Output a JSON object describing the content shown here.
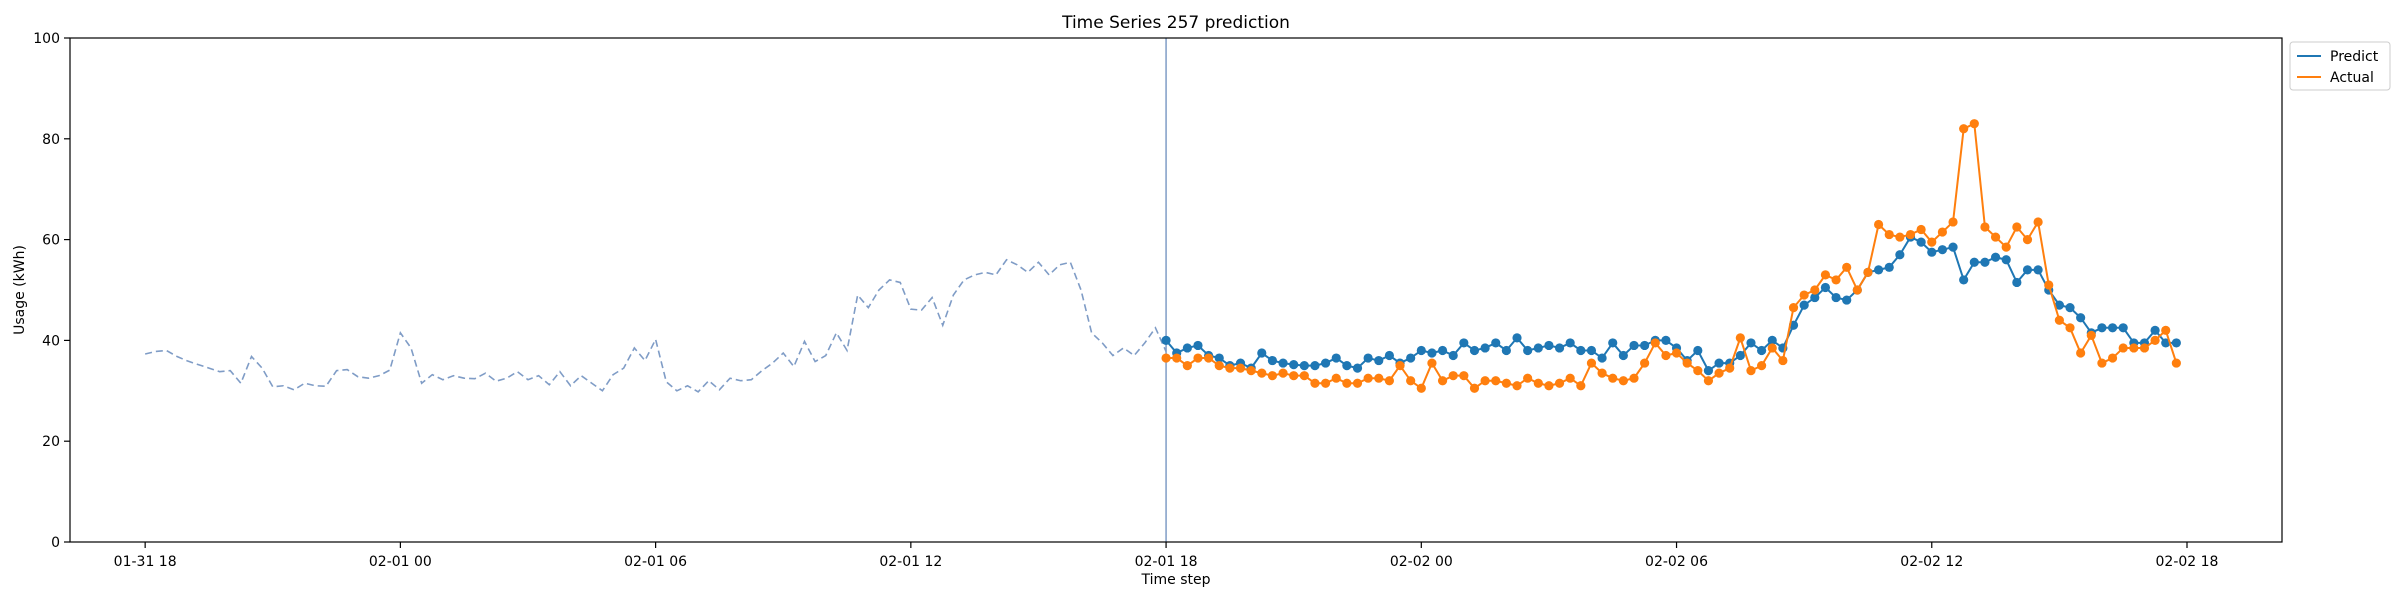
{
  "chart_data": {
    "type": "line",
    "title": "Time Series 257 prediction",
    "xlabel": "Time step",
    "ylabel": "Usage (kWh)",
    "ylim": [
      0,
      100
    ],
    "yticks": [
      0,
      20,
      40,
      60,
      80,
      100
    ],
    "xlim": [
      "2024-01-31T16:14",
      "2024-02-02T20:14"
    ],
    "xticks": [
      {
        "t": "2024-01-31T18:00",
        "label": "01-31 18"
      },
      {
        "t": "2024-02-01T00:00",
        "label": "02-01 00"
      },
      {
        "t": "2024-02-01T06:00",
        "label": "02-01 06"
      },
      {
        "t": "2024-02-01T12:00",
        "label": "02-01 12"
      },
      {
        "t": "2024-02-01T18:00",
        "label": "02-01 18"
      },
      {
        "t": "2024-02-02T00:00",
        "label": "02-02 00"
      },
      {
        "t": "2024-02-02T06:00",
        "label": "02-02 06"
      },
      {
        "t": "2024-02-02T12:00",
        "label": "02-02 12"
      },
      {
        "t": "2024-02-02T18:00",
        "label": "02-02 18"
      }
    ],
    "forecast_start": "2024-02-01T18:00",
    "grid": false,
    "legend": {
      "position": "outside-top-right",
      "entries": [
        "Predict",
        "Actual"
      ]
    },
    "colors": {
      "predict": "#1f77b4",
      "actual": "#ff7f0e",
      "history": "#7f9cc6",
      "divider": "#7f9cc6"
    },
    "series": [
      {
        "key": "history",
        "style": "dashed",
        "start": "2024-01-31T18:00",
        "interval_minutes": 15,
        "values": [
          37.3,
          37.8,
          38.0,
          36.8,
          35.9,
          35.2,
          34.5,
          33.8,
          34.0,
          31.5,
          36.8,
          34.5,
          30.8,
          31.0,
          30.2,
          31.5,
          31.0,
          30.9,
          34.0,
          34.2,
          32.8,
          32.5,
          33.0,
          34.1,
          41.5,
          38.5,
          31.5,
          33.2,
          32.2,
          33.0,
          32.5,
          32.4,
          33.5,
          31.9,
          32.5,
          33.8,
          32.2,
          33.0,
          31.2,
          33.8,
          31.0,
          33.0,
          31.5,
          30.0,
          33.2,
          34.5,
          38.5,
          36.0,
          40.2,
          31.8,
          30.0,
          31.0,
          29.8,
          32.0,
          30.2,
          32.5,
          32.0,
          32.2,
          34.0,
          35.5,
          37.5,
          34.8,
          39.8,
          35.8,
          37.0,
          41.5,
          38.0,
          49.0,
          46.5,
          50.0,
          52.0,
          51.5,
          46.2,
          46.0,
          48.5,
          43.0,
          49.0,
          52.0,
          53.0,
          53.5,
          53.0,
          56.0,
          55.0,
          53.5,
          55.5,
          53.0,
          55.0,
          55.5,
          50.0,
          41.5,
          39.5,
          37.0,
          38.5,
          37.0,
          39.5,
          42.5,
          37.8
        ]
      },
      {
        "key": "predict",
        "name": "Predict",
        "style": "solid-markers",
        "start": "2024-02-01T18:00",
        "interval_minutes": 15,
        "values": [
          40.0,
          37.5,
          38.5,
          39.0,
          37.0,
          36.5,
          35.0,
          35.5,
          34.5,
          37.5,
          36.0,
          35.5,
          35.2,
          35.0,
          35.0,
          35.5,
          36.5,
          35.0,
          34.5,
          36.5,
          36.0,
          37.0,
          35.5,
          36.5,
          38.0,
          37.5,
          38.0,
          37.0,
          39.5,
          38.0,
          38.5,
          39.5,
          38.0,
          40.5,
          38.0,
          38.5,
          39.0,
          38.5,
          39.5,
          38.0,
          38.0,
          36.5,
          39.5,
          37.0,
          39.0,
          39.0,
          40.0,
          40.0,
          38.5,
          36.0,
          38.0,
          34.0,
          35.5,
          35.5,
          37.0,
          39.5,
          38.0,
          40.0,
          38.5,
          43.0,
          47.0,
          48.5,
          50.5,
          48.5,
          48.0,
          50.0,
          53.5,
          54.0,
          54.5,
          57.0,
          60.5,
          59.5,
          57.5,
          58.0,
          58.5,
          52.0,
          55.5,
          55.5,
          56.5,
          56.0,
          51.5,
          54.0,
          54.0,
          50.0,
          47.0,
          46.5,
          44.5,
          41.5,
          42.5,
          42.5,
          42.5,
          39.5,
          39.5,
          42.0,
          39.5,
          39.5
        ]
      },
      {
        "key": "actual",
        "name": "Actual",
        "style": "solid-markers",
        "start": "2024-02-01T18:00",
        "interval_minutes": 15,
        "values": [
          36.5,
          36.5,
          35.0,
          36.5,
          36.5,
          35.0,
          34.5,
          34.5,
          34.0,
          33.5,
          33.0,
          33.5,
          33.0,
          33.0,
          31.5,
          31.5,
          32.5,
          31.5,
          31.5,
          32.5,
          32.5,
          32.0,
          35.0,
          32.0,
          30.5,
          35.5,
          32.0,
          33.0,
          33.0,
          30.5,
          32.0,
          32.0,
          31.5,
          31.0,
          32.5,
          31.5,
          31.0,
          31.5,
          32.5,
          31.0,
          35.5,
          33.5,
          32.5,
          32.0,
          32.5,
          35.5,
          39.5,
          37.0,
          37.5,
          35.5,
          34.0,
          32.0,
          33.5,
          34.5,
          40.5,
          34.0,
          35.0,
          38.5,
          36.0,
          46.5,
          49.0,
          50.0,
          53.0,
          52.0,
          54.5,
          50.0,
          53.5,
          63.0,
          61.0,
          60.5,
          61.0,
          62.0,
          59.5,
          61.5,
          63.5,
          82.0,
          83.0,
          62.5,
          60.5,
          58.5,
          62.5,
          60.0,
          63.5,
          51.0,
          44.0,
          42.5,
          37.5,
          41.0,
          35.5,
          36.5,
          38.5,
          38.5,
          38.5,
          40.0,
          42.0,
          35.5
        ]
      }
    ]
  }
}
